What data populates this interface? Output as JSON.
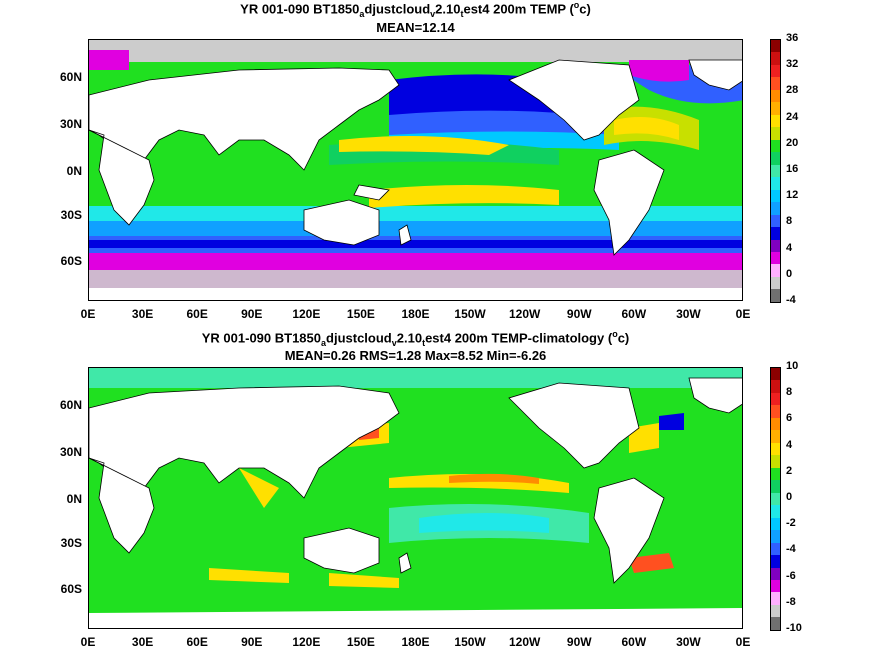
{
  "panels": [
    {
      "title_line1": "YR 001-090 BT1850_adjustcloud_v2.10_test4 200m TEMP (°c)",
      "title_line2": "MEAN=12.14",
      "colorbar_labels": [
        "36",
        "32",
        "28",
        "24",
        "20",
        "16",
        "12",
        "8",
        "4",
        "0",
        "-4"
      ],
      "colorbar_colors": [
        "#8b0000",
        "#cc1010",
        "#ee2020",
        "#ff5020",
        "#ff8c00",
        "#ffb000",
        "#ffe000",
        "#c8e000",
        "#20e020",
        "#10d060",
        "#40e8a8",
        "#20e8e8",
        "#00c8ff",
        "#10a0ff",
        "#3060ff",
        "#0000e0",
        "#8000c0",
        "#e000e0",
        "#ffb0ff",
        "#cccccc",
        "#707070"
      ]
    },
    {
      "title_line1": "YR 001-090 BT1850_adjustcloud_v2.10_test4 200m TEMP-climatology (°c)",
      "title_line2": "MEAN=0.26   RMS=1.28   Max=8.52   Min=-6.26",
      "colorbar_labels": [
        "10",
        "8",
        "6",
        "4",
        "2",
        "0",
        "-2",
        "-4",
        "-6",
        "-8",
        "-10"
      ],
      "colorbar_colors": [
        "#8b0000",
        "#cc1010",
        "#ee2020",
        "#ff5020",
        "#ff8c00",
        "#ffb000",
        "#ffe000",
        "#c8e000",
        "#20e020",
        "#10d060",
        "#40e8a8",
        "#20e8e8",
        "#00c8ff",
        "#10a0ff",
        "#3060ff",
        "#0000e0",
        "#8000c0",
        "#e000e0",
        "#ffb0ff",
        "#cccccc",
        "#707070"
      ]
    }
  ],
  "x_ticks": [
    "0E",
    "30E",
    "60E",
    "90E",
    "120E",
    "150E",
    "180E",
    "150W",
    "120W",
    "90W",
    "60W",
    "30W",
    "0E"
  ],
  "y_ticks": [
    "60N",
    "30N",
    "0N",
    "30S",
    "60S"
  ]
}
